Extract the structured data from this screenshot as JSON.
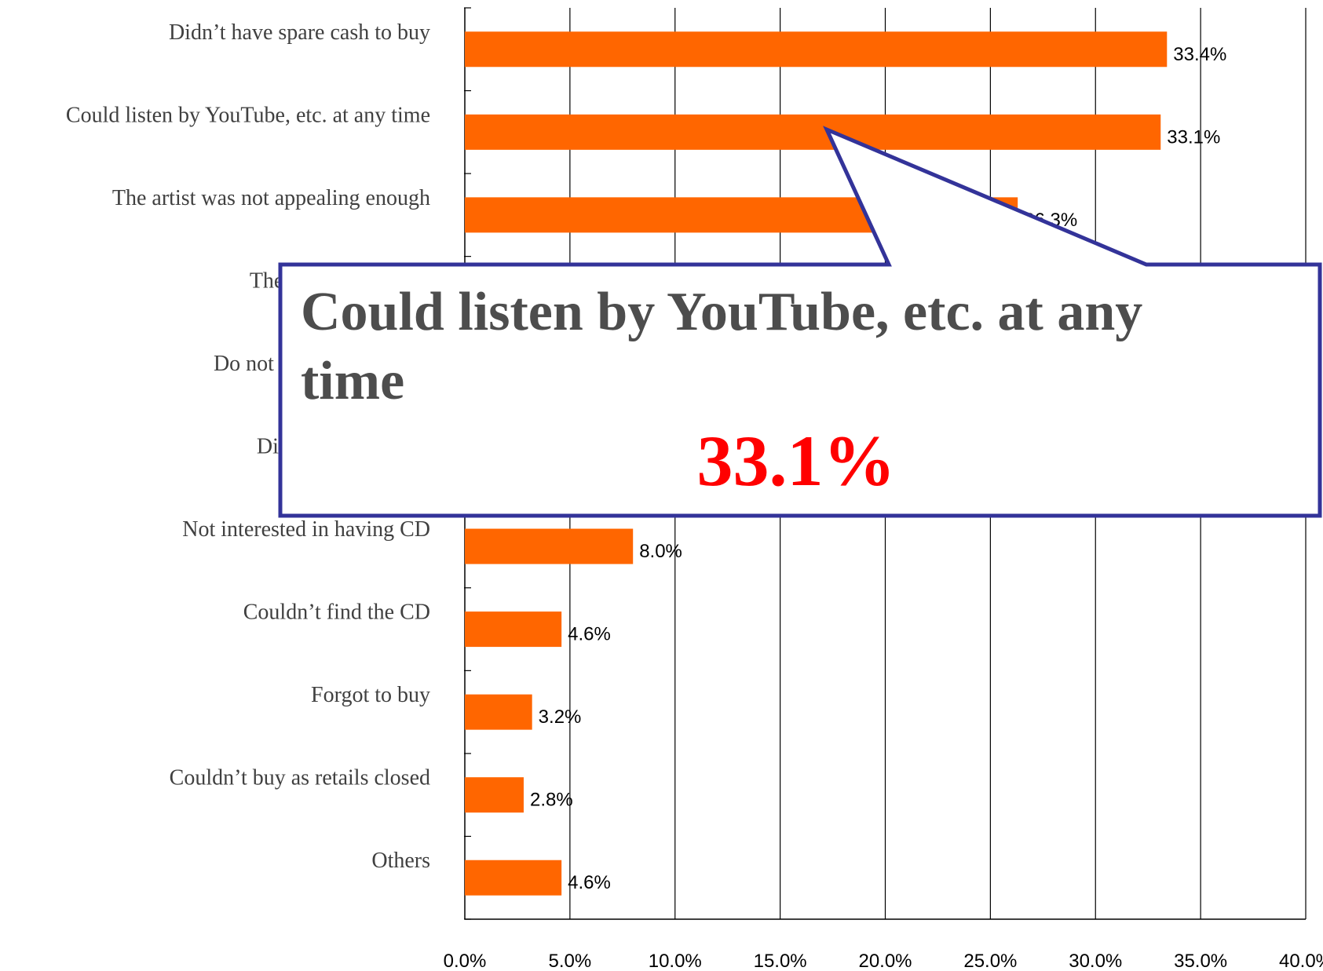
{
  "chart_data": {
    "type": "bar",
    "orientation": "horizontal",
    "categories": [
      "Didn’t have spare cash to buy",
      "Could listen by YouTube, etc. at any time",
      "The artist was not appealing enough",
      "The song was not ap",
      "Do not feel like spend m",
      "Didn’t have spare ti",
      "Not interested in having CD",
      "Couldn’t find the CD",
      "Forgot to buy",
      "Couldn’t buy as retails closed",
      "Others"
    ],
    "values": [
      33.4,
      33.1,
      26.3,
      null,
      null,
      null,
      8.0,
      4.6,
      3.2,
      2.8,
      4.6
    ],
    "data_labels": [
      "33.4%",
      "33.1%",
      "26.3%",
      "",
      "",
      "",
      "8.0%",
      "4.6%",
      "3.2%",
      "2.8%",
      "4.6%"
    ],
    "xlim": [
      0,
      40
    ],
    "x_ticks": [
      "0.0%",
      "5.0%",
      "10.0%",
      "15.0%",
      "20.0%",
      "25.0%",
      "30.0%",
      "35.0%",
      "40.0%"
    ],
    "grid": "vertical",
    "bar_color": "#ff6600",
    "title": "",
    "xlabel": "",
    "ylabel": ""
  },
  "callout": {
    "title_line1": "Could listen by YouTube, etc. at any",
    "title_line2": "time",
    "value": "33.1%",
    "border_color": "#333399",
    "value_color": "#ff0000"
  }
}
